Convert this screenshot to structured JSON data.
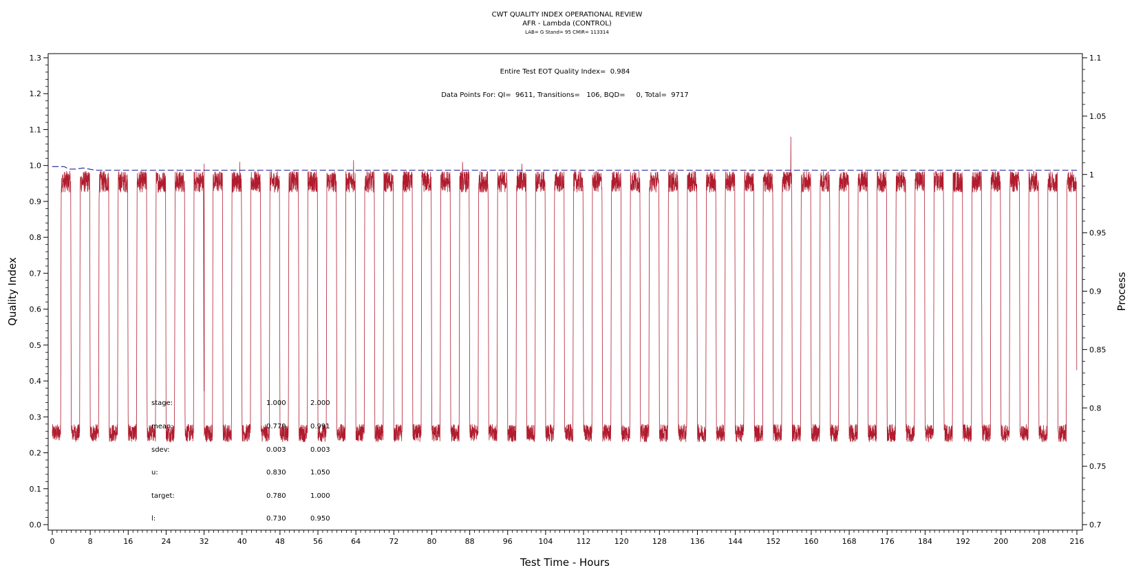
{
  "chart_data": {
    "type": "line",
    "title": "CWT QUALITY INDEX OPERATIONAL REVIEW",
    "subtitle": "AFR - Lambda (CONTROL)",
    "subsubtitle": "LAB= G Stand= 95 CMIR= 113314",
    "xlabel": "Test Time - Hours",
    "ylabel": "Quality Index",
    "y2label": "Process",
    "xlim": [
      0,
      216
    ],
    "ylim": [
      0,
      1.3
    ],
    "y2lim": [
      0.7,
      1.1
    ],
    "x_ticks": [
      0,
      8,
      16,
      24,
      32,
      40,
      48,
      56,
      64,
      72,
      80,
      88,
      96,
      104,
      112,
      120,
      128,
      136,
      144,
      152,
      160,
      168,
      176,
      184,
      192,
      200,
      208,
      216
    ],
    "y_ticks": [
      "0.0",
      "0.1",
      "0.2",
      "0.3",
      "0.4",
      "0.5",
      "0.6",
      "0.7",
      "0.8",
      "0.9",
      "1.0",
      "1.1",
      "1.2",
      "1.3"
    ],
    "y2_ticks": [
      "0.7",
      "0.75",
      "0.8",
      "0.85",
      "0.9",
      "0.95",
      "1",
      "1.05",
      "1.1"
    ],
    "grid": false,
    "annotations": [
      "Entire Test EOT Quality Index=  0.984",
      "Data Points For: QI=  9611, Transitions=   106, BQD=     0, Total=  9717"
    ],
    "stats_table": {
      "labels": [
        "stage:",
        "mean:",
        "sdev:",
        "u:",
        "target:",
        "l:"
      ],
      "col1": [
        "1.000",
        "0.779",
        "0.003",
        "0.830",
        "0.780",
        "0.730"
      ],
      "col2": [
        "2.000",
        "0.991",
        "0.003",
        "1.050",
        "1.000",
        "0.950"
      ]
    },
    "series": [
      {
        "color": "#b01c2e",
        "axis": "left",
        "pattern": "square-wave",
        "period_hours": 4,
        "low_level": 0.255,
        "high_level": 0.955,
        "spikes": [
          [
            32,
            1.005
          ],
          [
            39.5,
            1.01
          ],
          [
            63.5,
            1.015
          ],
          [
            86.5,
            1.01
          ],
          [
            99,
            1.005
          ],
          [
            155.7,
            1.08
          ]
        ]
      },
      {
        "color": "#1c1c9e",
        "axis": "left",
        "style": "dashed",
        "points": [
          [
            0,
            0.997
          ],
          [
            2.5,
            0.997
          ],
          [
            3.5,
            0.99
          ],
          [
            5,
            0.99
          ],
          [
            6.5,
            0.993
          ],
          [
            9,
            0.987
          ],
          [
            216,
            0.987
          ]
        ]
      }
    ]
  }
}
